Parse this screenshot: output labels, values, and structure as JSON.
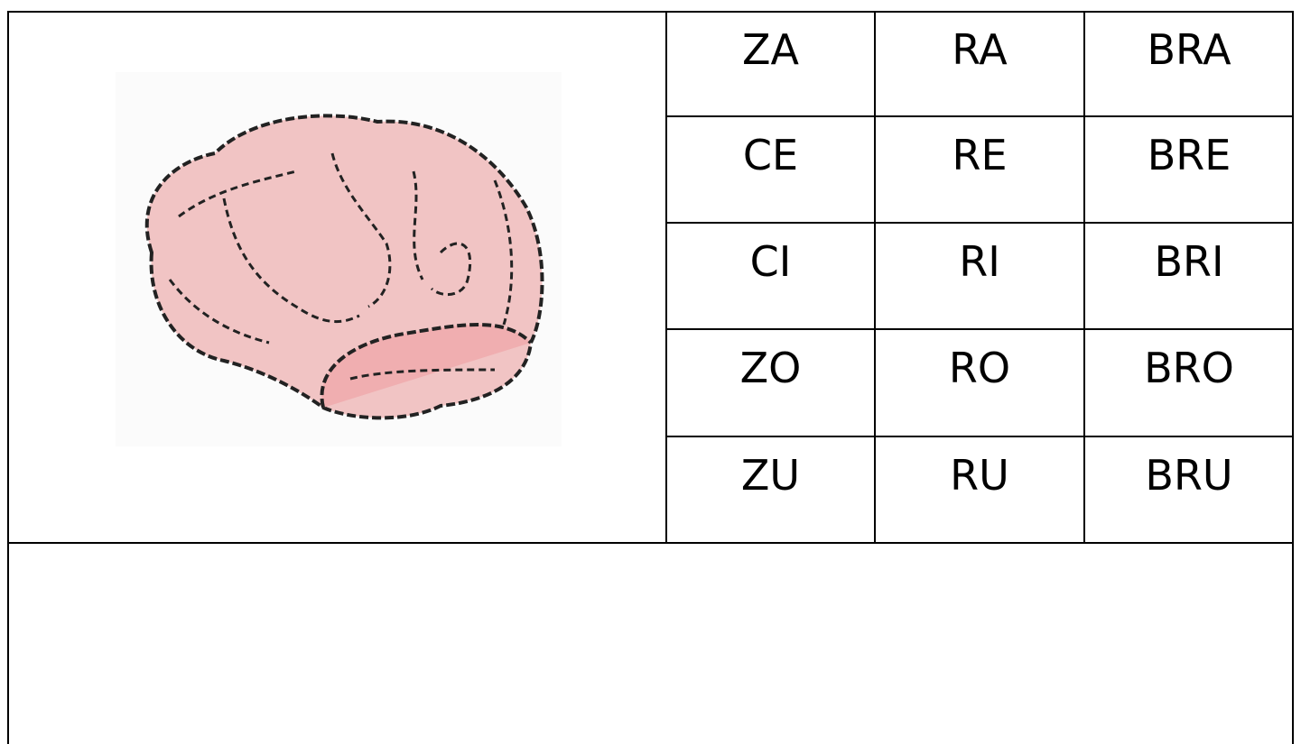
{
  "table": {
    "rows": [
      [
        "ZA",
        "RA",
        "BRA"
      ],
      [
        "CE",
        "RE",
        "BRE"
      ],
      [
        "CI",
        "RI",
        "BRI"
      ],
      [
        "ZO",
        "RO",
        "BRO"
      ],
      [
        "ZU",
        "RU",
        "BRU"
      ]
    ]
  }
}
